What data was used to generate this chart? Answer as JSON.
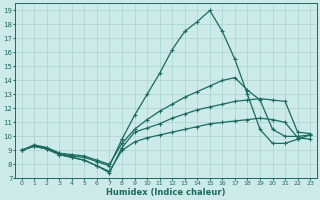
{
  "xlabel": "Humidex (Indice chaleur)",
  "xlim": [
    -0.5,
    23.5
  ],
  "ylim": [
    7,
    19.5
  ],
  "yticks": [
    7,
    8,
    9,
    10,
    11,
    12,
    13,
    14,
    15,
    16,
    17,
    18,
    19
  ],
  "xticks": [
    0,
    1,
    2,
    3,
    4,
    5,
    6,
    7,
    8,
    9,
    10,
    11,
    12,
    13,
    14,
    15,
    16,
    17,
    18,
    19,
    20,
    21,
    22,
    23
  ],
  "bg_color": "#cceae7",
  "grid_color": "#aad4d0",
  "line_color": "#1a6b5a",
  "line_width": 0.9,
  "marker": "+",
  "markersize": 3.5,
  "markeredgewidth": 0.8,
  "curves": [
    [
      9.0,
      9.3,
      9.1,
      8.7,
      8.5,
      8.3,
      7.9,
      7.4,
      9.2,
      10.3,
      10.6,
      10.9,
      11.3,
      11.6,
      11.9,
      12.1,
      12.3,
      12.5,
      12.6,
      12.7,
      12.6,
      12.5,
      10.3,
      10.2
    ],
    [
      9.0,
      9.3,
      9.2,
      8.8,
      8.6,
      8.5,
      8.2,
      7.9,
      9.8,
      11.5,
      13.0,
      14.5,
      16.2,
      17.5,
      18.2,
      19.0,
      17.5,
      15.5,
      13.0,
      10.5,
      9.5,
      9.5,
      9.8,
      10.1
    ],
    [
      9.0,
      9.4,
      9.2,
      8.8,
      8.7,
      8.6,
      8.3,
      8.0,
      9.5,
      10.5,
      11.2,
      11.8,
      12.3,
      12.8,
      13.2,
      13.6,
      14.0,
      14.2,
      13.3,
      12.6,
      10.5,
      10.0,
      10.0,
      10.1
    ],
    [
      9.0,
      9.3,
      9.1,
      8.7,
      8.5,
      8.3,
      7.9,
      7.5,
      9.0,
      9.6,
      9.9,
      10.1,
      10.3,
      10.5,
      10.7,
      10.9,
      11.0,
      11.1,
      11.2,
      11.3,
      11.2,
      11.0,
      9.9,
      9.8
    ]
  ]
}
